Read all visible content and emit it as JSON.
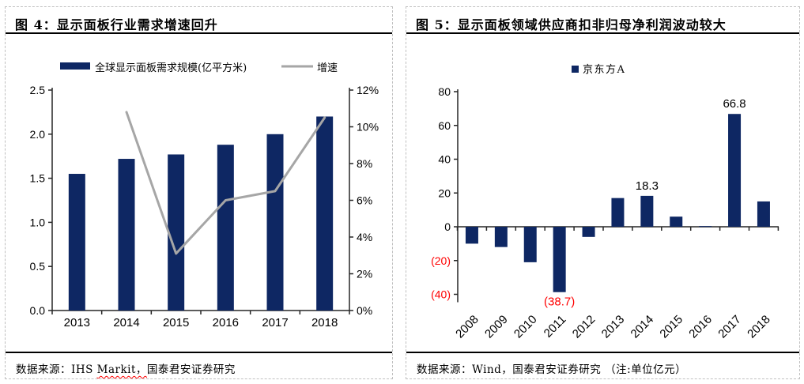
{
  "chart_data": [
    {
      "type": "bar+line",
      "title": "图 4：显示面板行业需求增速回升",
      "categories": [
        "2013",
        "2014",
        "2015",
        "2016",
        "2017",
        "2018"
      ],
      "series": [
        {
          "name": "全球显示面板需求规模(亿平方米)",
          "kind": "bar",
          "axis": "left",
          "values": [
            1.55,
            1.72,
            1.77,
            1.88,
            2.0,
            2.2
          ]
        },
        {
          "name": "增速",
          "kind": "line",
          "axis": "right",
          "unit": "%",
          "values": [
            null,
            10.8,
            3.1,
            6.0,
            6.5,
            10.5
          ]
        }
      ],
      "left_axis": {
        "range": [
          0,
          2.5
        ],
        "tick_labels": [
          "0.0",
          "0.5",
          "1.0",
          "1.5",
          "2.0",
          "2.5"
        ]
      },
      "right_axis": {
        "range": [
          0,
          12
        ],
        "tick_labels": [
          "0%",
          "2%",
          "4%",
          "6%",
          "8%",
          "10%",
          "12%"
        ]
      },
      "grid": false,
      "legend_position": "top",
      "colors": {
        "bar": "#0E2763",
        "line": "#A6A6A6",
        "axis": "#262626"
      },
      "source": {
        "pre": "数据来源：IHS ",
        "wavy": "Markit，",
        "post": "国泰君安证券研究"
      }
    },
    {
      "type": "bar",
      "title": "图 5：显示面板领域供应商扣非归母净利润波动较大",
      "legend": "京东方A",
      "categories": [
        "2008",
        "2009",
        "2010",
        "2011",
        "2012",
        "2013",
        "2014",
        "2015",
        "2016",
        "2017",
        "2018"
      ],
      "values": [
        -10,
        -12,
        -21,
        -38.7,
        -6,
        17,
        18.3,
        6,
        0.4,
        66.8,
        15
      ],
      "y_axis": {
        "range": [
          -40,
          80
        ],
        "tick_values": [
          80,
          60,
          40,
          20,
          0,
          -20,
          -40
        ],
        "tick_labels": [
          "80",
          "60",
          "40",
          "20",
          "0",
          "(20)",
          "(40)"
        ],
        "negative_color": "#FF0000"
      },
      "data_labels": [
        {
          "index": 3,
          "text": "(38.7)",
          "position": "below",
          "color": "#FF0000"
        },
        {
          "index": 6,
          "text": "18.3",
          "position": "above",
          "color": "#000000"
        },
        {
          "index": 9,
          "text": "66.8",
          "position": "above",
          "color": "#000000"
        }
      ],
      "grid": false,
      "legend_position": "top",
      "colors": {
        "bar": "#0E2763",
        "axis": "#262626"
      },
      "source": {
        "pre": "数据来源：Wind，国泰君安证券研究 （注:单位亿元）",
        "wavy": "",
        "post": ""
      }
    }
  ]
}
